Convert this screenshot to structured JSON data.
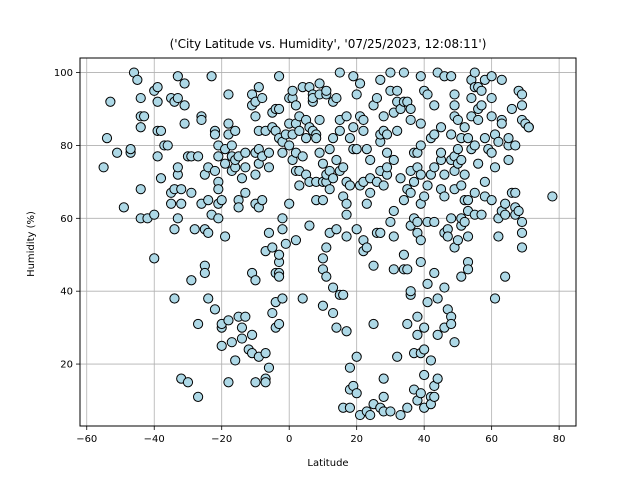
{
  "chart_data": {
    "type": "scatter",
    "title": "('City Latitude vs. Humidity', '07/25/2023, 12:08:11')",
    "xlabel": "Latitude",
    "ylabel": "Humidity (%)",
    "xlim": [
      -62,
      85
    ],
    "ylim": [
      3,
      104
    ],
    "xticks": [
      -60,
      -40,
      -20,
      0,
      20,
      40,
      60,
      80
    ],
    "yticks": [
      20,
      40,
      60,
      80,
      100
    ],
    "grid": true,
    "marker_color": "#add8e6",
    "marker_edge_color": "#000000",
    "points": [
      [
        -55,
        74
      ],
      [
        -54,
        82
      ],
      [
        -53,
        92
      ],
      [
        -51,
        78
      ],
      [
        -49,
        63
      ],
      [
        -47,
        78
      ],
      [
        -47,
        79
      ],
      [
        -46,
        100
      ],
      [
        -45,
        98
      ],
      [
        -44,
        88
      ],
      [
        -44,
        93
      ],
      [
        -44,
        60
      ],
      [
        -44,
        85
      ],
      [
        -44,
        68
      ],
      [
        -43,
        88
      ],
      [
        -42,
        60
      ],
      [
        -40,
        49
      ],
      [
        -40,
        61
      ],
      [
        -40,
        95
      ],
      [
        -39,
        92
      ],
      [
        -39,
        77
      ],
      [
        -39,
        84
      ],
      [
        -39,
        96
      ],
      [
        -38,
        71
      ],
      [
        -38,
        84
      ],
      [
        -37,
        80
      ],
      [
        -36,
        80
      ],
      [
        -35,
        93
      ],
      [
        -35,
        67
      ],
      [
        -35,
        64
      ],
      [
        -34,
        68
      ],
      [
        -34,
        57
      ],
      [
        -34,
        38
      ],
      [
        -34,
        92
      ],
      [
        -33,
        99
      ],
      [
        -33,
        93
      ],
      [
        -33,
        72
      ],
      [
        -33,
        74
      ],
      [
        -33,
        60
      ],
      [
        -32,
        64
      ],
      [
        -32,
        16
      ],
      [
        -32,
        68
      ],
      [
        -31,
        97
      ],
      [
        -31,
        86
      ],
      [
        -31,
        91
      ],
      [
        -30,
        15
      ],
      [
        -30,
        77
      ],
      [
        -29,
        67
      ],
      [
        -29,
        77
      ],
      [
        -29,
        43
      ],
      [
        -28,
        57
      ],
      [
        -27,
        77
      ],
      [
        -27,
        31
      ],
      [
        -27,
        11
      ],
      [
        -26,
        88
      ],
      [
        -26,
        87
      ],
      [
        -26,
        64
      ],
      [
        -25,
        57
      ],
      [
        -25,
        47
      ],
      [
        -25,
        45
      ],
      [
        -25,
        72
      ],
      [
        -24,
        74
      ],
      [
        -24,
        38
      ],
      [
        -24,
        56
      ],
      [
        -24,
        65
      ],
      [
        -23,
        61
      ],
      [
        -23,
        99
      ],
      [
        -22,
        35
      ],
      [
        -22,
        84
      ],
      [
        -22,
        83
      ],
      [
        -22,
        73
      ],
      [
        -21,
        77
      ],
      [
        -21,
        64
      ],
      [
        -21,
        80
      ],
      [
        -21,
        60
      ],
      [
        -21,
        70
      ],
      [
        -21,
        68
      ],
      [
        -20,
        25
      ],
      [
        -20,
        30
      ],
      [
        -20,
        31
      ],
      [
        -20,
        65
      ],
      [
        -19,
        55
      ],
      [
        -19,
        75
      ],
      [
        -19,
        79
      ],
      [
        -18,
        94
      ],
      [
        -18,
        86
      ],
      [
        -18,
        15
      ],
      [
        -18,
        83
      ],
      [
        -18,
        32
      ],
      [
        -17,
        77
      ],
      [
        -17,
        26
      ],
      [
        -17,
        80
      ],
      [
        -17,
        73
      ],
      [
        -16,
        74
      ],
      [
        -16,
        21
      ],
      [
        -16,
        84
      ],
      [
        -16,
        76
      ],
      [
        -15,
        33
      ],
      [
        -15,
        77
      ],
      [
        -15,
        65
      ],
      [
        -15,
        63
      ],
      [
        -14,
        30
      ],
      [
        -14,
        27
      ],
      [
        -14,
        71
      ],
      [
        -13,
        33
      ],
      [
        -13,
        78
      ],
      [
        -13,
        74
      ],
      [
        -13,
        67
      ],
      [
        -12,
        24
      ],
      [
        -11,
        45
      ],
      [
        -11,
        23
      ],
      [
        -11,
        28
      ],
      [
        -11,
        94
      ],
      [
        -11,
        91
      ],
      [
        -10,
        64
      ],
      [
        -10,
        92
      ],
      [
        -10,
        15
      ],
      [
        -10,
        78
      ],
      [
        -10,
        43
      ],
      [
        -10,
        88
      ],
      [
        -10,
        72
      ],
      [
        -9,
        84
      ],
      [
        -9,
        22
      ],
      [
        -9,
        75
      ],
      [
        -9,
        63
      ],
      [
        -9,
        79
      ],
      [
        -9,
        96
      ],
      [
        -8,
        65
      ],
      [
        -8,
        77
      ],
      [
        -8,
        93
      ],
      [
        -7,
        23
      ],
      [
        -7,
        16
      ],
      [
        -7,
        15
      ],
      [
        -7,
        51
      ],
      [
        -7,
        84
      ],
      [
        -6,
        56
      ],
      [
        -6,
        19
      ],
      [
        -6,
        74
      ],
      [
        -6,
        78
      ],
      [
        -5,
        34
      ],
      [
        -5,
        52
      ],
      [
        -5,
        85
      ],
      [
        -5,
        89
      ],
      [
        -4,
        90
      ],
      [
        -4,
        45
      ],
      [
        -4,
        30
      ],
      [
        -4,
        37
      ],
      [
        -4,
        84
      ],
      [
        -3,
        31
      ],
      [
        -3,
        48
      ],
      [
        -3,
        45
      ],
      [
        -3,
        44
      ],
      [
        -3,
        82
      ],
      [
        -3,
        99
      ],
      [
        -3,
        50
      ],
      [
        -3,
        90
      ],
      [
        -2,
        60
      ],
      [
        -2,
        78
      ],
      [
        -2,
        38
      ],
      [
        -2,
        57
      ],
      [
        -2,
        81
      ],
      [
        -1,
        53
      ],
      [
        -1,
        83
      ],
      [
        0,
        86
      ],
      [
        0,
        93
      ],
      [
        0,
        80
      ],
      [
        0,
        64
      ],
      [
        1,
        93
      ],
      [
        1,
        83
      ],
      [
        1,
        95
      ],
      [
        1,
        76
      ],
      [
        2,
        91
      ],
      [
        2,
        78
      ],
      [
        2,
        54
      ],
      [
        2,
        73
      ],
      [
        2,
        86
      ],
      [
        3,
        73
      ],
      [
        3,
        88
      ],
      [
        3,
        84
      ],
      [
        3,
        69
      ],
      [
        4,
        96
      ],
      [
        4,
        77
      ],
      [
        4,
        38
      ],
      [
        5,
        87
      ],
      [
        5,
        72
      ],
      [
        5,
        82
      ],
      [
        6,
        58
      ],
      [
        6,
        85
      ],
      [
        6,
        96
      ],
      [
        6,
        70
      ],
      [
        7,
        84
      ],
      [
        7,
        92
      ],
      [
        7,
        94
      ],
      [
        7,
        93
      ],
      [
        8,
        70
      ],
      [
        8,
        65
      ],
      [
        8,
        83
      ],
      [
        8,
        82
      ],
      [
        9,
        94
      ],
      [
        9,
        97
      ],
      [
        9,
        87
      ],
      [
        9,
        78
      ],
      [
        10,
        70
      ],
      [
        10,
        75
      ],
      [
        10,
        65
      ],
      [
        10,
        46
      ],
      [
        10,
        36
      ],
      [
        10,
        49
      ],
      [
        11,
        52
      ],
      [
        11,
        70
      ],
      [
        11,
        44
      ],
      [
        11,
        72
      ],
      [
        11,
        94
      ],
      [
        11,
        95
      ],
      [
        12,
        73
      ],
      [
        12,
        79
      ],
      [
        12,
        68
      ],
      [
        12,
        56
      ],
      [
        13,
        41
      ],
      [
        13,
        34
      ],
      [
        13,
        71
      ],
      [
        13,
        92
      ],
      [
        13,
        82
      ],
      [
        14,
        30
      ],
      [
        14,
        76
      ],
      [
        14,
        57
      ],
      [
        14,
        93
      ],
      [
        15,
        73
      ],
      [
        15,
        84
      ],
      [
        15,
        87
      ],
      [
        15,
        100
      ],
      [
        15,
        39
      ],
      [
        16,
        66
      ],
      [
        16,
        39
      ],
      [
        16,
        8
      ],
      [
        16,
        74
      ],
      [
        17,
        29
      ],
      [
        17,
        70
      ],
      [
        17,
        61
      ],
      [
        17,
        88
      ],
      [
        17,
        64
      ],
      [
        17,
        55
      ],
      [
        18,
        69
      ],
      [
        18,
        82
      ],
      [
        18,
        19
      ],
      [
        18,
        13
      ],
      [
        18,
        8
      ],
      [
        19,
        79
      ],
      [
        19,
        14
      ],
      [
        19,
        85
      ],
      [
        19,
        99
      ],
      [
        20,
        57
      ],
      [
        20,
        94
      ],
      [
        20,
        22
      ],
      [
        20,
        79
      ],
      [
        20,
        12
      ],
      [
        21,
        6
      ],
      [
        21,
        88
      ],
      [
        21,
        97
      ],
      [
        21,
        69
      ],
      [
        22,
        51
      ],
      [
        22,
        87
      ],
      [
        22,
        84
      ],
      [
        22,
        54
      ],
      [
        22,
        70
      ],
      [
        23,
        52
      ],
      [
        23,
        79
      ],
      [
        23,
        7
      ],
      [
        23,
        64
      ],
      [
        24,
        6
      ],
      [
        24,
        67
      ],
      [
        24,
        71
      ],
      [
        24,
        76
      ],
      [
        25,
        31
      ],
      [
        25,
        47
      ],
      [
        25,
        9
      ],
      [
        25,
        91
      ],
      [
        26,
        56
      ],
      [
        26,
        70
      ],
      [
        26,
        93
      ],
      [
        27,
        81
      ],
      [
        27,
        73
      ],
      [
        27,
        56
      ],
      [
        27,
        83
      ],
      [
        27,
        8
      ],
      [
        27,
        98
      ],
      [
        28,
        16
      ],
      [
        28,
        7
      ],
      [
        28,
        69
      ],
      [
        28,
        88
      ],
      [
        28,
        11
      ],
      [
        28,
        84
      ],
      [
        29,
        72
      ],
      [
        29,
        83
      ],
      [
        29,
        74
      ],
      [
        29,
        78
      ],
      [
        30,
        100
      ],
      [
        30,
        7
      ],
      [
        30,
        95
      ],
      [
        30,
        59
      ],
      [
        31,
        89
      ],
      [
        31,
        76
      ],
      [
        31,
        55
      ],
      [
        31,
        46
      ],
      [
        31,
        62
      ],
      [
        32,
        95
      ],
      [
        32,
        22
      ],
      [
        32,
        84
      ],
      [
        32,
        92
      ],
      [
        33,
        90
      ],
      [
        33,
        71
      ],
      [
        33,
        6
      ],
      [
        34,
        50
      ],
      [
        34,
        100
      ],
      [
        34,
        46
      ],
      [
        34,
        65
      ],
      [
        34,
        92
      ],
      [
        35,
        31
      ],
      [
        35,
        68
      ],
      [
        35,
        46
      ],
      [
        35,
        92
      ],
      [
        35,
        8
      ],
      [
        36,
        73
      ],
      [
        36,
        87
      ],
      [
        36,
        58
      ],
      [
        36,
        39
      ],
      [
        36,
        90
      ],
      [
        36,
        40
      ],
      [
        36,
        67
      ],
      [
        37,
        70
      ],
      [
        37,
        13
      ],
      [
        37,
        23
      ],
      [
        37,
        78
      ],
      [
        37,
        60
      ],
      [
        38,
        28
      ],
      [
        38,
        56
      ],
      [
        38,
        33
      ],
      [
        38,
        78
      ],
      [
        38,
        59
      ],
      [
        38,
        10
      ],
      [
        38,
        74
      ],
      [
        39,
        86
      ],
      [
        39,
        72
      ],
      [
        39,
        64
      ],
      [
        39,
        48
      ],
      [
        39,
        23
      ],
      [
        39,
        12
      ],
      [
        39,
        99
      ],
      [
        39,
        80
      ],
      [
        39,
        54
      ],
      [
        40,
        66
      ],
      [
        40,
        8
      ],
      [
        40,
        17
      ],
      [
        40,
        24
      ],
      [
        40,
        30
      ],
      [
        40,
        95
      ],
      [
        41,
        42
      ],
      [
        41,
        69
      ],
      [
        41,
        94
      ],
      [
        41,
        37
      ],
      [
        41,
        59
      ],
      [
        42,
        11
      ],
      [
        42,
        21
      ],
      [
        42,
        9
      ],
      [
        42,
        72
      ],
      [
        42,
        82
      ],
      [
        43,
        91
      ],
      [
        43,
        83
      ],
      [
        43,
        74
      ],
      [
        43,
        45
      ],
      [
        43,
        59
      ],
      [
        43,
        11
      ],
      [
        43,
        14
      ],
      [
        44,
        100
      ],
      [
        44,
        38
      ],
      [
        44,
        16
      ],
      [
        44,
        28
      ],
      [
        45,
        76
      ],
      [
        45,
        85
      ],
      [
        45,
        68
      ],
      [
        45,
        78
      ],
      [
        46,
        99
      ],
      [
        46,
        66
      ],
      [
        46,
        41
      ],
      [
        46,
        30
      ],
      [
        46,
        56
      ],
      [
        46,
        72
      ],
      [
        47,
        57
      ],
      [
        47,
        55
      ],
      [
        47,
        35
      ],
      [
        48,
        83
      ],
      [
        48,
        33
      ],
      [
        48,
        31
      ],
      [
        48,
        76
      ],
      [
        48,
        60
      ],
      [
        48,
        99
      ],
      [
        49,
        73
      ],
      [
        49,
        94
      ],
      [
        49,
        88
      ],
      [
        49,
        68
      ],
      [
        49,
        52
      ],
      [
        49,
        26
      ],
      [
        49,
        77
      ],
      [
        49,
        91
      ],
      [
        50,
        54
      ],
      [
        50,
        75
      ],
      [
        50,
        79
      ],
      [
        50,
        87
      ],
      [
        51,
        58
      ],
      [
        51,
        60
      ],
      [
        51,
        82
      ],
      [
        51,
        69
      ],
      [
        51,
        44
      ],
      [
        51,
        76
      ],
      [
        52,
        65
      ],
      [
        52,
        59
      ],
      [
        52,
        85
      ],
      [
        52,
        72
      ],
      [
        53,
        62
      ],
      [
        53,
        48
      ],
      [
        53,
        65
      ],
      [
        53,
        82
      ],
      [
        53,
        46
      ],
      [
        53,
        55
      ],
      [
        54,
        88
      ],
      [
        54,
        79
      ],
      [
        54,
        98
      ],
      [
        54,
        93
      ],
      [
        55,
        80
      ],
      [
        55,
        61
      ],
      [
        55,
        100
      ],
      [
        55,
        67
      ],
      [
        55,
        96
      ],
      [
        56,
        96
      ],
      [
        56,
        90
      ],
      [
        56,
        75
      ],
      [
        56,
        87
      ],
      [
        57,
        61
      ],
      [
        57,
        91
      ],
      [
        57,
        95
      ],
      [
        58,
        82
      ],
      [
        58,
        66
      ],
      [
        58,
        70
      ],
      [
        58,
        98
      ],
      [
        59,
        79
      ],
      [
        60,
        93
      ],
      [
        60,
        88
      ],
      [
        60,
        99
      ],
      [
        60,
        78
      ],
      [
        60,
        65
      ],
      [
        61,
        38
      ],
      [
        61,
        74
      ],
      [
        61,
        83
      ],
      [
        62,
        55
      ],
      [
        62,
        81
      ],
      [
        62,
        60
      ],
      [
        63,
        87
      ],
      [
        63,
        86
      ],
      [
        63,
        98
      ],
      [
        63,
        62
      ],
      [
        64,
        44
      ],
      [
        64,
        64
      ],
      [
        64,
        61
      ],
      [
        65,
        80
      ],
      [
        65,
        76
      ],
      [
        65,
        82
      ],
      [
        66,
        67
      ],
      [
        66,
        90
      ],
      [
        67,
        63
      ],
      [
        67,
        80
      ],
      [
        67,
        61
      ],
      [
        67,
        67
      ],
      [
        68,
        95
      ],
      [
        68,
        62
      ],
      [
        69,
        59
      ],
      [
        69,
        87
      ],
      [
        69,
        94
      ],
      [
        69,
        56
      ],
      [
        69,
        52
      ],
      [
        69,
        91
      ],
      [
        70,
        86
      ],
      [
        71,
        85
      ],
      [
        71,
        85
      ],
      [
        78,
        66
      ]
    ]
  }
}
